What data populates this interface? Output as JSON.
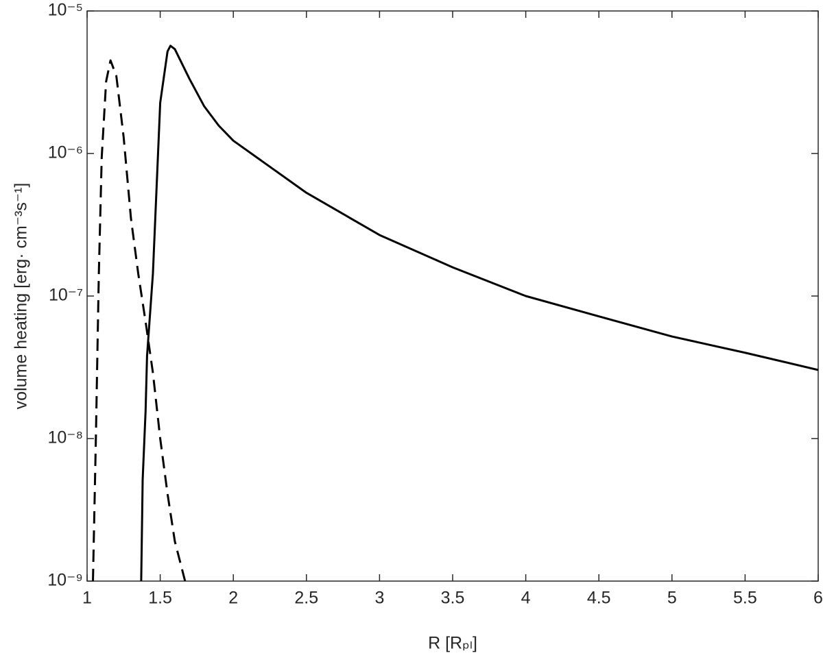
{
  "chart_data": {
    "type": "line",
    "xlabel": "R [Rₚₗ]",
    "ylabel": "volume heating [erg· cm⁻³s⁻¹]",
    "xlim": [
      1,
      6
    ],
    "xticks": [
      1,
      1.5,
      2,
      2.5,
      3,
      3.5,
      4,
      4.5,
      5,
      5.5,
      6
    ],
    "ylim": [
      1e-09,
      1e-05
    ],
    "yscale": "log",
    "yticks": [
      {
        "value": 1e-09,
        "label": "10⁻⁹"
      },
      {
        "value": 1e-08,
        "label": "10⁻⁸"
      },
      {
        "value": 1e-07,
        "label": "10⁻⁷"
      },
      {
        "value": 1e-06,
        "label": "10⁻⁶"
      },
      {
        "value": 1e-05,
        "label": "10⁻⁵"
      }
    ],
    "grid": false,
    "series": [
      {
        "color": "#000000",
        "dash": "solid",
        "x": [
          1.37,
          1.38,
          1.4,
          1.41,
          1.45,
          1.5,
          1.55,
          1.57,
          1.6,
          1.7,
          1.8,
          1.9,
          2,
          2.5,
          3,
          3.5,
          4,
          4.5,
          5,
          5.5,
          6
        ],
        "values": [
          1e-09,
          5.15e-09,
          1.56e-08,
          3.8e-08,
          1.43e-07,
          2.27e-06,
          5.2e-06,
          5.7e-06,
          5.4e-06,
          3.34e-06,
          2.15e-06,
          1.57e-06,
          1.23e-06,
          5.3e-07,
          2.68e-07,
          1.59e-07,
          1e-07,
          7.2e-08,
          5.2e-08,
          4e-08,
          3.03e-08
        ]
      },
      {
        "color": "#000000",
        "dash": "dashed",
        "x": [
          1.04,
          1.06,
          1.08,
          1.1,
          1.13,
          1.16,
          1.2,
          1.25,
          1.3,
          1.35,
          1.4,
          1.45,
          1.5,
          1.55,
          1.6,
          1.67
        ],
        "values": [
          1e-09,
          1e-08,
          1.4e-07,
          9.4e-07,
          3.2e-06,
          4.5e-06,
          3.5e-06,
          1.3e-06,
          3.5e-07,
          1.43e-07,
          6.6e-08,
          2.9e-08,
          1e-08,
          4.1e-09,
          1.9e-09,
          1e-09
        ]
      }
    ]
  }
}
